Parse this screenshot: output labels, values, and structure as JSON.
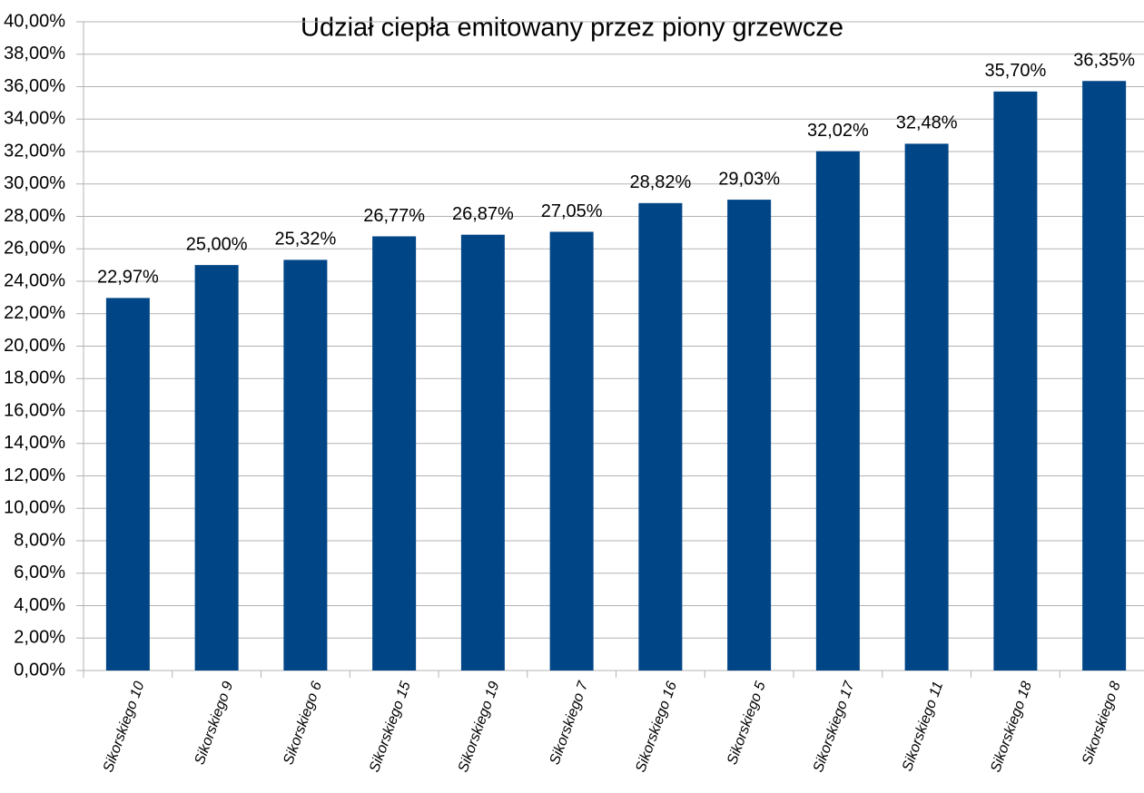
{
  "chart_data": {
    "type": "bar",
    "title": "Udział ciepła emitowany przez piony grzewcze",
    "categories": [
      "Sikorskiego 10",
      "Sikorskiego 9",
      "Sikorskiego 6",
      "Sikorskiego 15",
      "Sikorskiego 19",
      "Sikorskiego 7",
      "Sikorskiego 16",
      "Sikorskiego 5",
      "Sikorskiego 17",
      "Sikorskiego 11",
      "Sikorskiego 18",
      "Sikorskiego 8"
    ],
    "values": [
      22.97,
      25.0,
      25.32,
      26.77,
      26.87,
      27.05,
      28.82,
      29.03,
      32.02,
      32.48,
      35.7,
      36.35
    ],
    "value_labels": [
      "22,97%",
      "25,00%",
      "25,32%",
      "26,77%",
      "26,87%",
      "27,05%",
      "28,82%",
      "29,03%",
      "32,02%",
      "32,48%",
      "35,70%",
      "36,35%"
    ],
    "color": "#004586",
    "ylim": [
      0,
      40
    ],
    "yticks": [
      {
        "value": 0,
        "label": "0,00%"
      },
      {
        "value": 2,
        "label": "2,00%"
      },
      {
        "value": 4,
        "label": "4,00%"
      },
      {
        "value": 6,
        "label": "6,00%"
      },
      {
        "value": 8,
        "label": "8,00%"
      },
      {
        "value": 10,
        "label": "10,00%"
      },
      {
        "value": 12,
        "label": "12,00%"
      },
      {
        "value": 14,
        "label": "14,00%"
      },
      {
        "value": 16,
        "label": "16,00%"
      },
      {
        "value": 18,
        "label": "18,00%"
      },
      {
        "value": 20,
        "label": "20,00%"
      },
      {
        "value": 22,
        "label": "22,00%"
      },
      {
        "value": 24,
        "label": "24,00%"
      },
      {
        "value": 26,
        "label": "26,00%"
      },
      {
        "value": 28,
        "label": "28,00%"
      },
      {
        "value": 30,
        "label": "30,00%"
      },
      {
        "value": 32,
        "label": "32,00%"
      },
      {
        "value": 34,
        "label": "34,00%"
      },
      {
        "value": 36,
        "label": "36,00%"
      },
      {
        "value": 38,
        "label": "38,00%"
      },
      {
        "value": 40,
        "label": "40,00%"
      }
    ],
    "grid": true
  }
}
